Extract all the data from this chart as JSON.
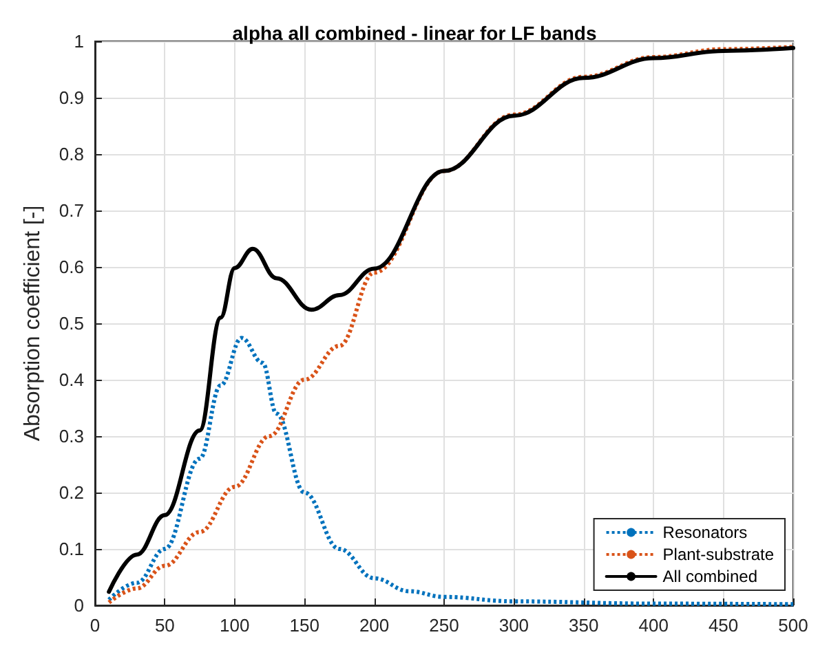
{
  "chart_data": {
    "type": "line",
    "title": "alpha all combined - linear for LF bands",
    "ylabel": "Absorption coefficient [-]",
    "xlim": [
      0,
      500
    ],
    "ylim": [
      0,
      1
    ],
    "xticks": [
      0,
      50,
      100,
      150,
      200,
      250,
      300,
      350,
      400,
      450,
      500
    ],
    "yticks": [
      0,
      0.1,
      0.2,
      0.3,
      0.4,
      0.5,
      0.6,
      0.7,
      0.8,
      0.9,
      1
    ],
    "grid": true,
    "legend": "bottom right",
    "marker": "none",
    "series": [
      {
        "name": "Resonators",
        "color": "#0072bd",
        "line_style": "dotted",
        "x": [
          10,
          30,
          50,
          75,
          90,
          105,
          120,
          130,
          150,
          175,
          200,
          225,
          250,
          300,
          400,
          500
        ],
        "values": [
          0.01,
          0.04,
          0.1,
          0.26,
          0.39,
          0.474,
          0.43,
          0.34,
          0.2,
          0.1,
          0.048,
          0.025,
          0.015,
          0.007,
          0.003,
          0.002
        ]
      },
      {
        "name": "Plant-substrate",
        "color": "#d95319",
        "line_style": "dotted",
        "x": [
          10,
          30,
          50,
          75,
          100,
          125,
          150,
          175,
          200,
          250,
          300,
          350,
          400,
          450,
          500
        ],
        "values": [
          0.005,
          0.03,
          0.07,
          0.13,
          0.21,
          0.3,
          0.4,
          0.46,
          0.59,
          0.77,
          0.87,
          0.937,
          0.972,
          0.986,
          0.99
        ]
      },
      {
        "name": "All combined",
        "color": "#000000",
        "line_style": "solid",
        "x": [
          10,
          30,
          50,
          75,
          90,
          100,
          113,
          130,
          155,
          175,
          200,
          250,
          300,
          350,
          400,
          450,
          500
        ],
        "values": [
          0.024,
          0.09,
          0.16,
          0.31,
          0.51,
          0.598,
          0.632,
          0.58,
          0.524,
          0.55,
          0.597,
          0.77,
          0.868,
          0.935,
          0.97,
          0.983,
          0.988
        ]
      }
    ]
  }
}
